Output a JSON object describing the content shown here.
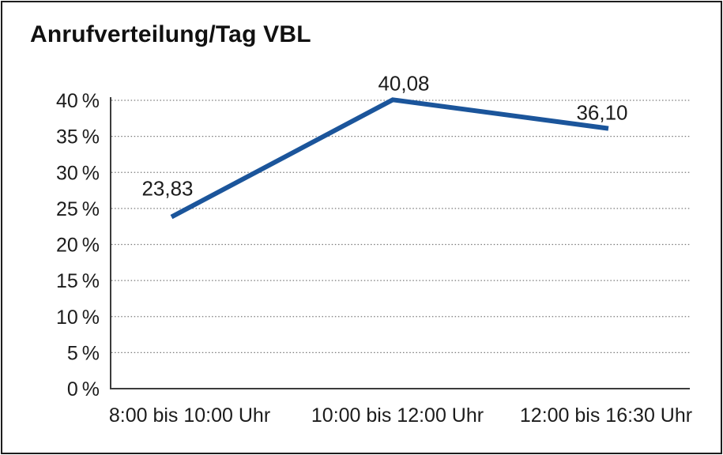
{
  "page": {
    "title": "Anrufverteilung/Tag VBL"
  },
  "colors": {
    "line": "#1B559B",
    "grid": "#7a7a7a",
    "axis": "#3c3c3c",
    "text": "#1c1c1c",
    "border": "#1d1d1d",
    "background": "#ffffff"
  },
  "chart_data": {
    "type": "line",
    "title": "Anrufverteilung/Tag VBL",
    "categories": [
      "8:00 bis 10:00 Uhr",
      "10:00 bis 12:00 Uhr",
      "12:00 bis 16:30 Uhr"
    ],
    "series": [
      {
        "name": "",
        "values": [
          23.83,
          40.08,
          36.1
        ]
      }
    ],
    "point_labels": [
      "23,83",
      "40,08",
      "36,10"
    ],
    "yticks": {
      "values": [
        0,
        5,
        10,
        15,
        20,
        25,
        30,
        35,
        40
      ],
      "labels": [
        "0 %",
        "5 %",
        "10 %",
        "15 %",
        "20 %",
        "25 %",
        "30 %",
        "35 %",
        "40 %"
      ]
    },
    "ylim": [
      0,
      40
    ],
    "xlabel": "",
    "ylabel": "",
    "grid": "horizontal-dotted",
    "legend": "none"
  }
}
